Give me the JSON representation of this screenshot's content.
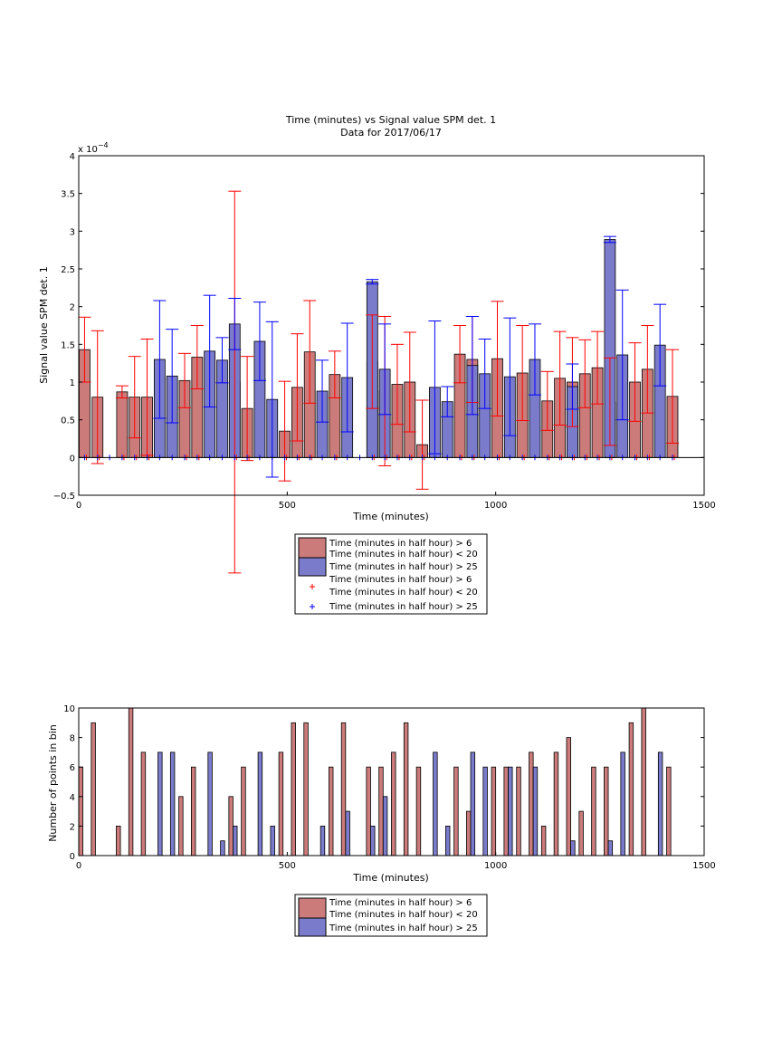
{
  "chart_data": [
    {
      "type": "bar",
      "title": "Time (minutes) vs Signal value SPM det. 1",
      "subtitle": "Data for 2017/06/17",
      "xlabel": "Time (minutes)",
      "ylabel": "Signal value SPM det. 1",
      "y_exponent_label": "x 10",
      "y_exponent_power": "−4",
      "xlim": [
        0,
        1500
      ],
      "ylim": [
        -0.5,
        4
      ],
      "x_ticks": [
        "0",
        "500",
        "1000",
        "1500"
      ],
      "y_ticks": [
        "−0.5",
        "0",
        "0.5",
        "1",
        "1.5",
        "2",
        "2.5",
        "3",
        "3.5",
        "4"
      ],
      "y_tick_values": [
        -0.5,
        0,
        0.5,
        1,
        1.5,
        2,
        2.5,
        3,
        3.5,
        4
      ],
      "grid": false,
      "legend_placement": "below",
      "legend": [
        {
          "kind": "bar",
          "color": "#cc7b7b",
          "line1": "Time (minutes in half hour) > 6",
          "line2": "Time (minutes in half hour) < 20"
        },
        {
          "kind": "bar",
          "color": "#7b7bcc",
          "line1": "Time (minutes in half hour) > 25",
          "line2": ""
        },
        {
          "kind": "marker",
          "color": "#ff0000",
          "line1": "Time (minutes in half hour) > 6",
          "line2": "Time (minutes in half hour) < 20"
        },
        {
          "kind": "marker",
          "color": "#0000ff",
          "line1": "Time (minutes in half hour) > 25",
          "line2": ""
        }
      ],
      "series": [
        {
          "color": "#cc7b7b",
          "error_color": "#ff0000",
          "x": [
            14,
            45,
            104,
            134,
            164,
            254,
            284,
            374,
            404,
            494,
            524,
            554,
            614,
            704,
            734,
            764,
            794,
            824,
            914,
            944,
            1004,
            1064,
            1124,
            1154,
            1184,
            1214,
            1244,
            1274,
            1334,
            1364,
            1424
          ],
          "y": [
            1.43,
            0.8,
            0.87,
            0.8,
            0.8,
            1.02,
            1.33,
            1.0,
            0.65,
            0.35,
            0.93,
            1.4,
            1.1,
            1.27,
            0.88,
            0.97,
            1.0,
            0.17,
            1.37,
            1.3,
            1.31,
            1.12,
            0.75,
            1.05,
            1.0,
            1.11,
            1.19,
            0.74,
            1.0,
            1.17,
            0.81
          ],
          "err": [
            0.43,
            0.88,
            0.08,
            0.54,
            0.77,
            0.36,
            0.42,
            2.53,
            0.69,
            0.66,
            0.71,
            0.68,
            0.31,
            0.62,
            0.99,
            0.53,
            0.66,
            0.59,
            0.38,
            0.57,
            0.76,
            0.63,
            0.39,
            0.62,
            0.59,
            0.45,
            0.48,
            0.58,
            0.52,
            0.58,
            0.62
          ]
        },
        {
          "color": "#7b7bcc",
          "error_color": "#0000ff",
          "x": [
            194,
            224,
            314,
            344,
            374,
            434,
            464,
            584,
            644,
            704,
            734,
            854,
            884,
            944,
            974,
            1034,
            1094,
            1184,
            1274,
            1304,
            1394
          ],
          "y": [
            1.3,
            1.08,
            1.41,
            1.29,
            1.77,
            1.54,
            0.77,
            0.88,
            1.06,
            2.33,
            1.17,
            0.93,
            0.74,
            1.22,
            1.11,
            1.07,
            1.3,
            0.94,
            2.89,
            1.36,
            1.49
          ]
        }
      ],
      "zero_markers": {
        "red_x": [
          14,
          45,
          104,
          134,
          164,
          254,
          284,
          374,
          404,
          494,
          524,
          554,
          614,
          704,
          734,
          764,
          794,
          824,
          914,
          944,
          1004,
          1064,
          1124,
          1154,
          1184,
          1214,
          1244,
          1274,
          1334,
          1364,
          1424
        ],
        "blue_x": [
          14,
          45,
          74,
          104,
          134,
          164,
          194,
          224,
          254,
          284,
          314,
          344,
          374,
          404,
          434,
          464,
          494,
          524,
          554,
          584,
          614,
          644,
          674,
          704,
          734,
          764,
          794,
          824,
          854,
          884,
          914,
          944,
          974,
          1004,
          1034,
          1064,
          1094,
          1124,
          1154,
          1184,
          1214,
          1244,
          1274,
          1304,
          1334,
          1364,
          1394,
          1424
        ]
      }
    },
    {
      "type": "bar",
      "xlabel": "Time (minutes)",
      "ylabel": "Number of points in bin",
      "xlim": [
        0,
        1500
      ],
      "ylim": [
        0,
        10
      ],
      "x_ticks": [
        "0",
        "500",
        "1000",
        "1500"
      ],
      "y_ticks": [
        "0",
        "2",
        "4",
        "6",
        "8",
        "10"
      ],
      "y_tick_values": [
        0,
        2,
        4,
        6,
        8,
        10
      ],
      "grid": false,
      "legend_placement": "below",
      "legend": [
        {
          "kind": "bar",
          "color": "#cc7b7b",
          "line1": "Time (minutes in half hour) > 6",
          "line2": "Time (minutes in half hour) < 20"
        },
        {
          "kind": "bar",
          "color": "#7b7bcc",
          "line1": "Time (minutes in half hour) > 25",
          "line2": ""
        }
      ],
      "series": [
        {
          "color": "#cc7b7b",
          "x": [
            5,
            35,
            95,
            125,
            155,
            245,
            275,
            365,
            395,
            485,
            515,
            545,
            605,
            635,
            695,
            725,
            755,
            785,
            815,
            905,
            935,
            995,
            1025,
            1055,
            1085,
            1115,
            1145,
            1175,
            1205,
            1235,
            1265,
            1325,
            1355,
            1415
          ],
          "values": [
            6,
            9,
            2,
            10,
            7,
            4,
            6,
            4,
            6,
            7,
            9,
            9,
            6,
            9,
            6,
            6,
            7,
            9,
            6,
            6,
            3,
            6,
            6,
            6,
            7,
            2,
            7,
            8,
            3,
            6,
            6,
            9,
            10,
            6
          ]
        },
        {
          "color": "#7b7bcc",
          "x": [
            195,
            225,
            315,
            345,
            375,
            435,
            465,
            585,
            645,
            705,
            735,
            855,
            885,
            945,
            975,
            1035,
            1095,
            1185,
            1275,
            1305,
            1395
          ],
          "values": [
            7,
            7,
            7,
            1,
            2,
            7,
            2,
            2,
            3,
            2,
            4,
            7,
            2,
            7,
            6,
            6,
            6,
            1,
            1,
            7,
            7
          ]
        }
      ]
    }
  ]
}
